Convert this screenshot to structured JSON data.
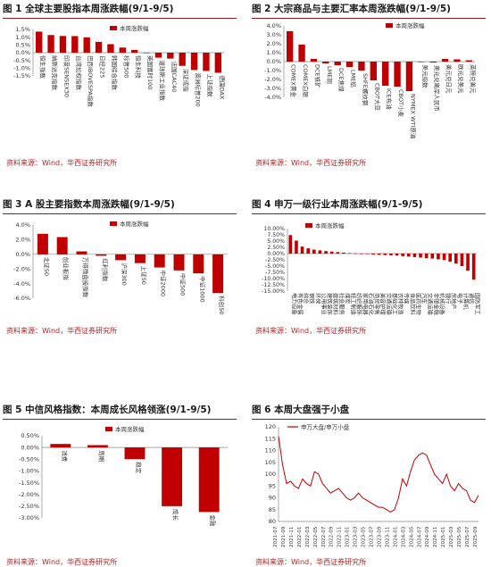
{
  "colors": {
    "bar": "#c00000",
    "line": "#c00000",
    "axis": "#888888",
    "title_rule": "#8b1a1a",
    "source": "#b02424"
  },
  "panels": [
    {
      "title": "图 1 全球主要股指本周涨跌幅(9/1-9/5)",
      "source": "资料来源：Wind，华西证券研究所",
      "chart_data": {
        "type": "bar",
        "legend": [
          "本周涨跌幅"
        ],
        "legend_position": "top-right",
        "yticks": [
          "1.5%",
          "1.0%",
          "0.5%",
          "0.0%",
          "-0.5%",
          "-1.0%",
          "-1.5%"
        ],
        "ylim": [
          -1.5,
          1.5
        ],
        "categories": [
          "恒生指数",
          "纳斯达克指数",
          "印度SENSEX30",
          "台湾加权指数",
          "巴西IBOVESPA指数",
          "日经225",
          "韩国综合指数",
          "标普500",
          "恒生科技",
          "英国富时100",
          "道琼斯工业指数",
          "法国CAC40",
          "深证成指",
          "澳洲标普200",
          "上证指数",
          "德国DAX"
        ],
        "series": [
          {
            "values": [
              1.36,
              1.14,
              1.08,
              1.07,
              0.99,
              0.7,
              0.55,
              0.33,
              0.18,
              0.0,
              -0.32,
              -0.38,
              -0.85,
              -1.12,
              -1.18,
              -1.3
            ]
          }
        ]
      }
    },
    {
      "title": "图 2 大宗商品与主要汇率本周涨跌幅(9/1-9/5)",
      "source": "资料来源：Wind，华西证券研究所",
      "chart_data": {
        "type": "bar",
        "legend": [
          "本周涨跌幅"
        ],
        "legend_position": "top-right",
        "yticks": [
          "4.0%",
          "3.0%",
          "2.0%",
          "1.0%",
          "0.0%",
          "-1.0%",
          "-2.0%",
          "-3.0%",
          "-4.0%"
        ],
        "ylim": [
          -4.0,
          4.0
        ],
        "categories": [
          "COMEX黄金",
          "COMEX白银",
          "DCE铁矿",
          "LME铜",
          "DCE焦煤",
          "LME铝",
          "SHFE螺纹钢",
          "CBOT大豆",
          "ICE布油",
          "CBOT小麦",
          "NYMEX WTI原油",
          "美元指数",
          "美元兑离岸人民币",
          "美元兑日元",
          "欧元兑美元",
          "英镑兑美元"
        ],
        "series": [
          {
            "values": [
              3.4,
              1.9,
              0.3,
              -0.2,
              -0.4,
              -0.6,
              -1.0,
              -2.1,
              -2.7,
              -2.8,
              -3.3,
              -0.05,
              -0.1,
              0.3,
              0.25,
              0.15
            ]
          }
        ]
      }
    },
    {
      "title": "图 3 A 股主要指数本周涨跌幅(9/1-9/5)",
      "source": "资料来源：Wind，华西证券研究所",
      "chart_data": {
        "type": "bar",
        "legend": [
          "本周涨跌幅"
        ],
        "legend_position": "top-right",
        "yticks": [
          "4.0%",
          "2.0%",
          "0.0%",
          "-2.0%",
          "-4.0%",
          "-6.0%"
        ],
        "ylim": [
          -6.0,
          4.0
        ],
        "categories": [
          "北证50",
          "创业板指",
          "万得微盘股指数",
          "红利指数",
          "沪深300",
          "上证50",
          "中证2000",
          "中证500",
          "中证1000",
          "科创50"
        ],
        "series": [
          {
            "values": [
              2.8,
              2.35,
              0.4,
              -0.2,
              -0.8,
              -1.2,
              -1.8,
              -2.2,
              -2.6,
              -5.3
            ]
          }
        ]
      }
    },
    {
      "title": "图 4 申万一级行业本周涨跌幅(9/1-9/5)",
      "source": "资料来源：Wind，华西证券研究所",
      "chart_data": {
        "type": "bar",
        "legend": [
          "本周涨跌幅"
        ],
        "legend_position": "top-left",
        "yticks": [
          "10.00%",
          "7.50%",
          "5.00%",
          "2.50%",
          "0.00%",
          "-2.50%",
          "-5.00%",
          "-7.50%",
          "-10.00%",
          "-12.50%",
          "-15.00%"
        ],
        "ylim": [
          -15.0,
          10.0
        ],
        "categories": [
          "电力设备",
          "有色金属",
          "综合",
          "钢铁",
          "环保",
          "公用事业",
          "建筑装饰",
          "建筑材料",
          "社会服务",
          "煤炭",
          "轻工制造",
          "纺织服饰",
          "家用电器",
          "石油石化",
          "商贸零售",
          "美容护理",
          "交通运输",
          "基础化工",
          "农林牧渔",
          "传媒",
          "食品饮料",
          "医药生物",
          "汽车",
          "交通运输",
          "非银金融",
          "机械设备",
          "银行",
          "房地产",
          "电子",
          "计算机",
          "通信",
          "国防军工"
        ],
        "series": [
          {
            "values": [
              7.4,
              5.2,
              2.8,
              2.1,
              1.6,
              1.3,
              1.0,
              0.8,
              0.6,
              0.4,
              0.2,
              0.1,
              -0.1,
              -0.2,
              -0.4,
              -0.5,
              -0.6,
              -0.7,
              -0.8,
              -1.0,
              -1.2,
              -1.4,
              -1.6,
              -1.8,
              -2.0,
              -2.3,
              -2.6,
              -3.2,
              -4.0,
              -5.0,
              -6.8,
              -10.4
            ]
          }
        ]
      }
    },
    {
      "title": "图 5 中信风格指数：本周成长风格领涨(9/1-9/5)",
      "source": "资料来源：Wind，华西证券研究所",
      "chart_data": {
        "type": "bar",
        "legend": [
          "本周涨跌幅"
        ],
        "legend_position": "top-center",
        "yticks": [
          "0.50%",
          "0.00%",
          "-0.50%",
          "-1.00%",
          "-1.50%",
          "-2.00%",
          "-2.50%",
          "-3.00%"
        ],
        "ylim": [
          -3.0,
          0.5
        ],
        "categories": [
          "消费",
          "周期",
          "稳定",
          "成长",
          "金融"
        ],
        "series": [
          {
            "values": [
              0.15,
              0.1,
              -0.5,
              -2.5,
              -2.75
            ]
          }
        ]
      }
    },
    {
      "title": "图 6 本周大盘强于小盘",
      "source": "资料来源：Wind，华西证券研究所",
      "chart_data": {
        "type": "line",
        "legend": [
          "申万大盘/申万小盘"
        ],
        "legend_position": "top-left",
        "yticks": [
          "120",
          "115",
          "110",
          "105",
          "100",
          "95",
          "90",
          "85",
          "80"
        ],
        "ylim": [
          80,
          120
        ],
        "xticks": [
          "2021-07",
          "2021-09",
          "2021-11",
          "2022-01",
          "2022-03",
          "2022-05",
          "2022-07",
          "2022-09",
          "2022-11",
          "2023-01",
          "2023-03",
          "2023-05",
          "2023-07",
          "2023-09",
          "2023-11",
          "2024-01",
          "2024-03",
          "2024-05",
          "2024-07",
          "2024-09",
          "2024-11",
          "2025-01",
          "2025-03",
          "2025-05",
          "2025-07",
          "2025-09"
        ],
        "series": [
          {
            "name": "申万大盘/申万小盘",
            "x": [
              "2021-07",
              "2021-08",
              "2021-09",
              "2021-10",
              "2021-11",
              "2021-12",
              "2022-01",
              "2022-02",
              "2022-03",
              "2022-04",
              "2022-05",
              "2022-06",
              "2022-07",
              "2022-08",
              "2022-09",
              "2022-10",
              "2022-11",
              "2022-12",
              "2023-01",
              "2023-02",
              "2023-03",
              "2023-04",
              "2023-05",
              "2023-06",
              "2023-07",
              "2023-08",
              "2023-09",
              "2023-10",
              "2023-11",
              "2023-12",
              "2024-01",
              "2024-02",
              "2024-03",
              "2024-04",
              "2024-05",
              "2024-06",
              "2024-07",
              "2024-08",
              "2024-09",
              "2024-10",
              "2024-11",
              "2024-12",
              "2025-01",
              "2025-02",
              "2025-03",
              "2025-04",
              "2025-05",
              "2025-06",
              "2025-07",
              "2025-08",
              "2025-09"
            ],
            "values": [
              116,
              104,
              96,
              97,
              95,
              94,
              98,
              96,
              95,
              101,
              100,
              96,
              94,
              92,
              93,
              94,
              92,
              90,
              89,
              90,
              92,
              90,
              89,
              88,
              87,
              86,
              86,
              85,
              84,
              85,
              90,
              98,
              95,
              101,
              106,
              108,
              109,
              108,
              104,
              100,
              98,
              96,
              100,
              95,
              93,
              96,
              94,
              93,
              89,
              88,
              91
            ]
          }
        ]
      }
    }
  ]
}
